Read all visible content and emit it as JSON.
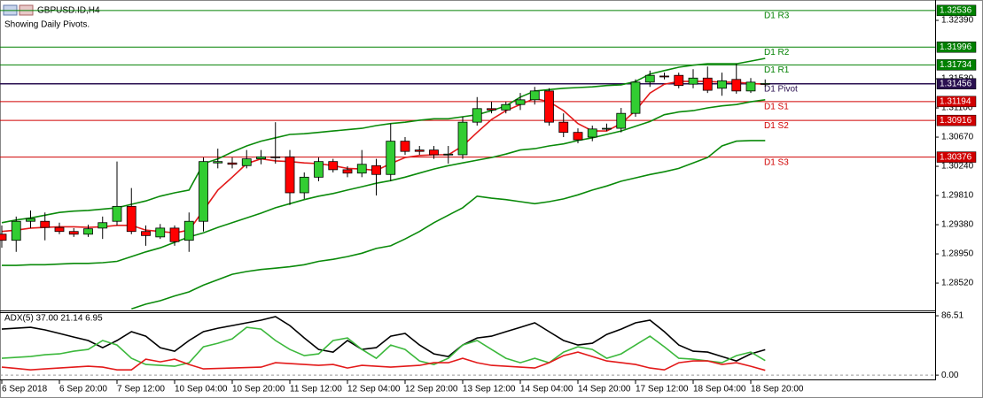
{
  "symbol": "GBPUSD.ID,H4",
  "subtitle": "Showing Daily Pivots.",
  "chart_data": [
    {
      "type": "candlestick",
      "categories": [
        "6 Sep 2018",
        null,
        null,
        null,
        "6 Sep 20:00",
        null,
        null,
        null,
        "7 Sep 12:00",
        null,
        null,
        null,
        "10 Sep 04:00",
        null,
        null,
        null,
        "10 Sep 20:00",
        null,
        null,
        null,
        "11 Sep 12:00",
        null,
        null,
        null,
        "12 Sep 04:00",
        null,
        null,
        null,
        "12 Sep 20:00",
        null,
        null,
        null,
        "13 Sep 12:00",
        null,
        null,
        null,
        "14 Sep 04:00",
        null,
        null,
        null,
        "14 Sep 20:00",
        null,
        null,
        null,
        "17 Sep 12:00",
        null,
        null,
        null,
        "18 Sep 04:00",
        null,
        null,
        null,
        "18 Sep 20:00",
        null
      ],
      "open": [
        1.2924,
        1.2915,
        1.2943,
        1.2943,
        1.2934,
        1.2928,
        1.2924,
        1.2933,
        1.2943,
        1.2965,
        1.2928,
        1.292,
        1.2933,
        1.2915,
        1.2943,
        1.3029,
        1.3029,
        1.3025,
        1.3035,
        1.3038,
        1.3038,
        1.2985,
        1.3008,
        1.3031,
        1.3019,
        1.3014,
        1.3025,
        1.3012,
        1.3061,
        1.3048,
        1.3048,
        1.3041,
        1.3041,
        1.3089,
        1.3109,
        1.3107,
        1.3115,
        1.3122,
        1.3135,
        1.3089,
        1.3074,
        1.3067,
        1.3079,
        1.308,
        1.3102,
        1.3148,
        1.3157,
        1.3158,
        1.3145,
        1.3154,
        1.3139,
        1.3152,
        1.3135,
        1.3146
      ],
      "high": [
        1.2937,
        1.295,
        1.2959,
        1.2956,
        1.2941,
        1.2933,
        1.2938,
        1.295,
        1.3031,
        1.2992,
        1.2937,
        1.2939,
        1.2937,
        1.2956,
        1.3037,
        1.305,
        1.3037,
        1.3048,
        1.3048,
        1.3089,
        1.3048,
        1.3015,
        1.3037,
        1.3035,
        1.3024,
        1.3048,
        1.3035,
        1.3087,
        1.3067,
        1.3054,
        1.3054,
        1.3054,
        1.3097,
        1.3126,
        1.3119,
        1.3119,
        1.3132,
        1.3141,
        1.3139,
        1.3102,
        1.308,
        1.3084,
        1.3087,
        1.311,
        1.3152,
        1.3165,
        1.3162,
        1.3162,
        1.3167,
        1.3171,
        1.3162,
        1.3175,
        1.3154,
        1.3152
      ],
      "low": [
        1.2904,
        1.2898,
        1.2933,
        1.2915,
        1.2924,
        1.292,
        1.292,
        1.2917,
        1.2937,
        1.2924,
        1.2907,
        1.2917,
        1.2907,
        1.2898,
        1.2928,
        1.3021,
        1.3021,
        1.3021,
        1.3027,
        1.3028,
        1.2967,
        1.2976,
        1.3002,
        1.3015,
        1.3008,
        1.3008,
        1.2981,
        1.3002,
        1.3041,
        1.3041,
        1.3035,
        1.3028,
        1.3035,
        1.3084,
        1.3102,
        1.3102,
        1.3107,
        1.3115,
        1.3084,
        1.3067,
        1.3058,
        1.3061,
        1.3076,
        1.3074,
        1.3097,
        1.3141,
        1.3152,
        1.3139,
        1.3139,
        1.3132,
        1.3128,
        1.3131,
        1.3132,
        1.3141
      ],
      "close": [
        1.2915,
        1.2943,
        1.2947,
        1.2934,
        1.2928,
        1.2924,
        1.2932,
        1.2941,
        1.2965,
        1.2928,
        1.2922,
        1.2933,
        1.2913,
        1.2943,
        1.3031,
        1.3031,
        1.3027,
        1.3035,
        1.3038,
        1.3037,
        1.2985,
        1.3008,
        1.3031,
        1.3019,
        1.3014,
        1.3027,
        1.3012,
        1.3061,
        1.3046,
        1.3046,
        1.3041,
        1.3042,
        1.3089,
        1.3109,
        1.3107,
        1.3115,
        1.3122,
        1.3135,
        1.3089,
        1.3074,
        1.3063,
        1.3079,
        1.308,
        1.3102,
        1.3148,
        1.3158,
        1.3156,
        1.3143,
        1.3154,
        1.3136,
        1.315,
        1.3135,
        1.3148,
        1.3146
      ],
      "up_color": "#32cd32",
      "down_color": "#ff0000",
      "lines": [
        {
          "color": "#0a8a0a",
          "values": [
            1.2941,
            1.2945,
            1.2948,
            1.2952,
            1.2956,
            1.2958,
            1.2959,
            1.2961,
            1.2963,
            1.2968,
            1.2973,
            1.298,
            1.2985,
            1.2989,
            1.3028,
            1.3035,
            1.3045,
            1.3054,
            1.3061,
            1.3066,
            1.3071,
            1.3072,
            1.3074,
            1.3076,
            1.3078,
            1.308,
            1.3084,
            1.3087,
            1.3089,
            1.3092,
            1.3094,
            1.3094,
            1.3097,
            1.31,
            1.3106,
            1.3113,
            1.3126,
            1.3135,
            1.3137,
            1.3139,
            1.314,
            1.3141,
            1.3143,
            1.3144,
            1.3149,
            1.316,
            1.3165,
            1.317,
            1.3173,
            1.3175,
            1.3175,
            1.3175,
            1.3179,
            1.3183
          ]
        },
        {
          "color": "#0a8a0a",
          "values": [
            1.2878,
            1.2878,
            1.2879,
            1.2879,
            1.288,
            1.2881,
            1.2881,
            1.2882,
            1.2884,
            1.2891,
            1.2898,
            1.2904,
            1.2912,
            1.292,
            1.2926,
            1.2934,
            1.2941,
            1.2948,
            1.2955,
            1.2963,
            1.2969,
            1.2975,
            1.298,
            1.2984,
            1.2989,
            1.2994,
            1.2999,
            1.3003,
            1.3008,
            1.3014,
            1.302,
            1.3025,
            1.3029,
            1.3033,
            1.3037,
            1.3042,
            1.3048,
            1.305,
            1.3054,
            1.3057,
            1.3062,
            1.3066,
            1.3071,
            1.3076,
            1.3083,
            1.309,
            1.31,
            1.3104,
            1.3106,
            1.311,
            1.3113,
            1.3115,
            1.3119,
            1.3122
          ]
        },
        {
          "color": "#0a8a0a",
          "values": [
            null,
            null,
            null,
            null,
            null,
            null,
            null,
            null,
            null,
            1.2814,
            1.2821,
            1.2826,
            1.2833,
            1.2839,
            1.2849,
            1.2857,
            1.2865,
            1.2869,
            1.2872,
            1.2874,
            1.2876,
            1.2879,
            1.2884,
            1.2887,
            1.2891,
            1.2896,
            1.2903,
            1.2907,
            1.2917,
            1.2928,
            1.2941,
            1.2952,
            1.2963,
            1.298,
            1.2977,
            1.2975,
            1.2972,
            1.2969,
            1.2972,
            1.2976,
            1.2982,
            1.2989,
            1.2995,
            1.3002,
            1.3007,
            1.3012,
            1.3016,
            1.3021,
            1.3029,
            1.3037,
            1.3054,
            1.3061,
            1.3062,
            1.3062
          ]
        },
        {
          "color": "#e31a1a",
          "values": [
            1.2928,
            1.293,
            1.2933,
            1.2934,
            1.2935,
            1.2935,
            1.2934,
            1.2935,
            1.2937,
            1.2937,
            1.293,
            1.2928,
            1.2926,
            1.293,
            1.2959,
            1.2989,
            1.3008,
            1.3028,
            1.3035,
            1.3032,
            1.3031,
            1.3029,
            1.3028,
            1.3025,
            1.3021,
            1.302,
            1.3018,
            1.3028,
            1.3037,
            1.304,
            1.3041,
            1.3041,
            1.3054,
            1.3074,
            1.3093,
            1.3106,
            1.3115,
            1.3124,
            1.3119,
            1.3106,
            1.3087,
            1.3076,
            1.3076,
            1.3087,
            1.3106,
            1.3132,
            1.3145,
            1.3149,
            1.3149,
            1.3149,
            1.3148,
            1.3148,
            1.3146,
            1.3145
          ]
        }
      ],
      "pivots": [
        {
          "name": "D1 R3",
          "value": 1.32536,
          "color": "#008000"
        },
        {
          "name": "D1 R2",
          "value": 1.31996,
          "color": "#008000"
        },
        {
          "name": "D1 R1",
          "value": 1.31734,
          "color": "#008000"
        },
        {
          "name": "D1 Pivot",
          "value": 1.31456,
          "color": "#2a1050"
        },
        {
          "name": "D1 S1",
          "value": 1.31194,
          "color": "#d00000"
        },
        {
          "name": "D1 S2",
          "value": 1.30916,
          "color": "#d00000"
        },
        {
          "name": "D1 S3",
          "value": 1.30376,
          "color": "#d00000"
        }
      ],
      "ylim": [
        1.2813,
        1.3269
      ],
      "yticks": [
        {
          "value": 1.2852,
          "label": "1.28520"
        },
        {
          "value": 1.2895,
          "label": "1.28950"
        },
        {
          "value": 1.2938,
          "label": "1.29380"
        },
        {
          "value": 1.2981,
          "label": "1.29810"
        },
        {
          "value": 1.3024,
          "label": "1.30240"
        },
        {
          "value": 1.3067,
          "label": "1.30670"
        },
        {
          "value": 1.311,
          "label": "1.31100"
        },
        {
          "value": 1.3153,
          "label": "1.31530"
        },
        {
          "value": 1.3239,
          "label": "1.32390"
        }
      ]
    },
    {
      "type": "line",
      "title": "ADX(5) 37.00 21.14 6.95",
      "lines": [
        {
          "color": "#000000",
          "values": [
            67.1,
            68.4,
            69.7,
            65.9,
            60.7,
            55.5,
            50.4,
            40.0,
            50.4,
            63.3,
            56.8,
            40.0,
            34.9,
            50.4,
            63.3,
            68.4,
            72.3,
            76.2,
            80.1,
            85.2,
            72.3,
            54.2,
            37.4,
            33.6,
            50.4,
            37.4,
            40.0,
            56.8,
            60.7,
            43.9,
            31.0,
            27.1,
            43.9,
            54.2,
            56.8,
            63.3,
            69.7,
            76.2,
            63.3,
            50.4,
            43.9,
            46.5,
            59.4,
            67.1,
            76.2,
            80.1,
            63.3,
            43.9,
            34.9,
            33.6,
            27.1,
            20.7,
            31.0,
            37.0
          ]
        },
        {
          "color": "#3cb83c",
          "values": [
            24.5,
            25.8,
            27.1,
            29.7,
            31.0,
            34.9,
            37.4,
            50.4,
            43.9,
            24.5,
            15.5,
            14.2,
            12.9,
            18.1,
            41.3,
            46.5,
            52.9,
            69.7,
            67.1,
            50.4,
            37.4,
            28.4,
            31.0,
            50.4,
            54.2,
            37.4,
            24.5,
            43.9,
            37.4,
            20.7,
            15.5,
            24.5,
            43.9,
            50.4,
            37.4,
            24.5,
            18.1,
            24.5,
            18.1,
            33.6,
            41.3,
            37.4,
            24.5,
            31.0,
            43.9,
            56.8,
            41.3,
            24.5,
            23.2,
            20.7,
            18.1,
            28.4,
            33.6,
            21.14
          ]
        },
        {
          "color": "#e31a1a",
          "values": [
            11.6,
            9.7,
            7.7,
            9.0,
            10.3,
            11.6,
            12.9,
            11.6,
            7.7,
            7.7,
            23.2,
            19.4,
            23.2,
            15.5,
            9.0,
            9.7,
            10.3,
            11.0,
            11.6,
            18.1,
            16.8,
            15.5,
            14.2,
            15.5,
            10.3,
            14.2,
            12.9,
            11.6,
            12.9,
            14.2,
            18.1,
            18.1,
            24.5,
            18.1,
            14.2,
            12.9,
            11.6,
            10.3,
            18.1,
            28.4,
            33.6,
            27.1,
            20.7,
            18.1,
            15.5,
            10.3,
            7.7,
            18.1,
            20.7,
            20.7,
            15.5,
            18.1,
            12.9,
            6.95
          ]
        }
      ],
      "ylim": [
        -5,
        93
      ],
      "yticks": [
        {
          "value": 0,
          "label": "0.00"
        },
        86.51
      ]
    }
  ]
}
